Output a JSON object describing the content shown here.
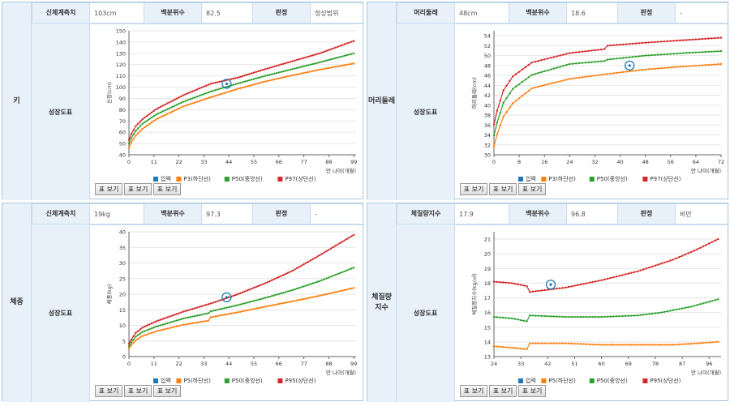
{
  "panels": [
    {
      "side": "키",
      "measure_label": "신체계측치",
      "measure_value": "103cm",
      "pct_label": "백분위수",
      "pct_value": "82.5",
      "judge_label": "판정",
      "judge_value": "정상범위",
      "chart_caption": "성장도표"
    },
    {
      "side": "머리둘레",
      "measure_label": "머리둘레",
      "measure_value": "48cm",
      "pct_label": "백분위수",
      "pct_value": "18.6",
      "judge_label": "판정",
      "judge_value": "-",
      "chart_caption": "성장도표"
    },
    {
      "side": "체중",
      "measure_label": "신체계측치",
      "measure_value": "19kg",
      "pct_label": "백분위수",
      "pct_value": "97.3",
      "judge_label": "판정",
      "judge_value": "-",
      "chart_caption": "성장도표"
    },
    {
      "side": "체질량\n지수",
      "measure_label": "체질량지수",
      "measure_value": "17.9",
      "pct_label": "백분위수",
      "pct_value": "96.8",
      "judge_label": "판정",
      "judge_value": "비만",
      "chart_caption": "성장도표"
    }
  ],
  "buttons": [
    "표 보기",
    "표 보기",
    "표 보기"
  ],
  "colors": {
    "input": "#1f77b4",
    "low": "#ff7f0e",
    "mid": "#2ca02c",
    "high": "#d62728"
  },
  "chart_data": [
    {
      "type": "line",
      "ylabel": "신장(cm)",
      "xlabel": "만 나이(개월)",
      "xlim": [
        0,
        100
      ],
      "ylim": [
        40,
        150
      ],
      "xticks": [
        0,
        11,
        22,
        33,
        44,
        55,
        66,
        77,
        88,
        99
      ],
      "yticks": [
        40,
        50,
        60,
        70,
        80,
        90,
        100,
        110,
        120,
        130,
        140,
        150
      ],
      "series": [
        {
          "name": "입력",
          "key": "input"
        },
        {
          "name": "P3(하단선)",
          "key": "low",
          "x": [
            0,
            1,
            3,
            6,
            12,
            24,
            36,
            48,
            60,
            72,
            84,
            99
          ],
          "y": [
            46.3,
            51,
            57,
            63,
            71.5,
            83,
            91,
            98.5,
            105,
            110.5,
            115.5,
            121
          ]
        },
        {
          "name": "P50(중앙선)",
          "key": "mid",
          "x": [
            0,
            1,
            3,
            6,
            12,
            24,
            36,
            48,
            60,
            72,
            84,
            99
          ],
          "y": [
            49.9,
            54.7,
            61.4,
            67.6,
            75.7,
            87.1,
            96.1,
            103.3,
            110,
            116,
            122,
            130
          ]
        },
        {
          "name": "P97(상단선)",
          "key": "high",
          "x": [
            0,
            1,
            3,
            6,
            12,
            24,
            36,
            48,
            60,
            72,
            84,
            99
          ],
          "y": [
            53.4,
            58.4,
            65.5,
            71.6,
            80.5,
            92.9,
            103,
            108.5,
            116,
            123,
            130,
            141
          ]
        }
      ],
      "point": {
        "x": 43,
        "y": 103
      }
    },
    {
      "type": "line",
      "ylabel": "머리둘레(cm)",
      "xlabel": "만 나이(개월)",
      "xlim": [
        0,
        72
      ],
      "ylim": [
        30,
        55
      ],
      "xticks": [
        0,
        8,
        16,
        24,
        32,
        40,
        48,
        56,
        64,
        72
      ],
      "yticks": [
        30,
        32,
        34,
        36,
        38,
        40,
        42,
        44,
        46,
        48,
        50,
        52,
        54
      ],
      "series": [
        {
          "name": "입력",
          "key": "input"
        },
        {
          "name": "P3(하단선)",
          "key": "low",
          "x": [
            0,
            1,
            3,
            6,
            12,
            24,
            36,
            48,
            60,
            72
          ],
          "y": [
            31.7,
            34.1,
            37.7,
            40.4,
            43.4,
            45.3,
            46.3,
            47.2,
            47.8,
            48.3
          ]
        },
        {
          "name": "P50(중앙선)",
          "key": "mid",
          "x": [
            0,
            1,
            3,
            6,
            12,
            24,
            35,
            36,
            48,
            60,
            72
          ],
          "y": [
            33.9,
            36.5,
            40.5,
            43.3,
            46.1,
            48.3,
            48.9,
            49.2,
            50,
            50.5,
            50.9
          ]
        },
        {
          "name": "P97(상단선)",
          "key": "high",
          "x": [
            0,
            1,
            3,
            6,
            12,
            24,
            35,
            36,
            48,
            60,
            72
          ],
          "y": [
            36.1,
            38.9,
            43,
            45.8,
            48.6,
            50.5,
            51.3,
            52,
            52.6,
            53.1,
            53.6
          ]
        }
      ],
      "point": {
        "x": 43,
        "y": 48
      }
    },
    {
      "type": "line",
      "ylabel": "체중(kg)",
      "xlabel": "만 나이(개월)",
      "xlim": [
        0,
        100
      ],
      "ylim": [
        0,
        40
      ],
      "xticks": [
        0,
        11,
        22,
        33,
        44,
        55,
        66,
        77,
        88,
        99
      ],
      "yticks": [
        0,
        5,
        10,
        15,
        20,
        25,
        30,
        35,
        40
      ],
      "series": [
        {
          "name": "입력",
          "key": "input"
        },
        {
          "name": "P5(하단선)",
          "key": "low",
          "x": [
            0,
            1,
            3,
            6,
            12,
            24,
            35,
            36,
            48,
            60,
            72,
            84,
            99
          ],
          "y": [
            2.6,
            3.6,
            5.2,
            6.6,
            8.1,
            10.2,
            11.5,
            12.6,
            14.2,
            16,
            17.7,
            19.5,
            22
          ]
        },
        {
          "name": "P50(중앙선)",
          "key": "mid",
          "x": [
            0,
            1,
            3,
            6,
            12,
            24,
            35,
            36,
            48,
            60,
            72,
            84,
            99
          ],
          "y": [
            3.3,
            4.5,
            6.4,
            7.9,
            9.6,
            12.2,
            13.9,
            14.5,
            16.5,
            18.8,
            21.3,
            24.2,
            28.5
          ]
        },
        {
          "name": "P95(상단선)",
          "key": "high",
          "x": [
            0,
            1,
            3,
            6,
            12,
            24,
            36,
            48,
            60,
            72,
            84,
            99
          ],
          "y": [
            4.1,
            5.4,
            7.6,
            9.3,
            11.3,
            14.4,
            17,
            20,
            23.5,
            27.5,
            32.5,
            39
          ]
        }
      ],
      "point": {
        "x": 43,
        "y": 19
      }
    },
    {
      "type": "line",
      "ylabel": "체질량지수(kg/㎡)",
      "xlabel": "만 나이(개월)",
      "xlim": [
        24,
        100
      ],
      "ylim": [
        13,
        21.5
      ],
      "xticks": [
        24,
        33,
        42,
        51,
        60,
        69,
        78,
        87,
        96
      ],
      "yticks": [
        13,
        14,
        15,
        16,
        17,
        18,
        19,
        20,
        21
      ],
      "series": [
        {
          "name": "입력",
          "key": "input"
        },
        {
          "name": "P5(하단선)",
          "key": "low",
          "x": [
            24,
            30,
            35,
            36,
            48,
            60,
            72,
            84,
            92,
            99
          ],
          "y": [
            13.7,
            13.6,
            13.5,
            13.9,
            13.9,
            13.8,
            13.8,
            13.8,
            13.9,
            14
          ]
        },
        {
          "name": "P50(중앙선)",
          "key": "mid",
          "x": [
            24,
            30,
            35,
            36,
            48,
            60,
            72,
            80,
            90,
            99
          ],
          "y": [
            15.7,
            15.6,
            15.4,
            15.8,
            15.7,
            15.7,
            15.8,
            16,
            16.4,
            16.9
          ]
        },
        {
          "name": "P95(상단선)",
          "key": "high",
          "x": [
            24,
            30,
            35,
            36,
            48,
            60,
            72,
            84,
            92,
            99
          ],
          "y": [
            18.1,
            18,
            17.8,
            17.4,
            17.7,
            18.2,
            18.8,
            19.6,
            20.3,
            21
          ]
        }
      ],
      "point": {
        "x": 43,
        "y": 17.9
      }
    }
  ]
}
